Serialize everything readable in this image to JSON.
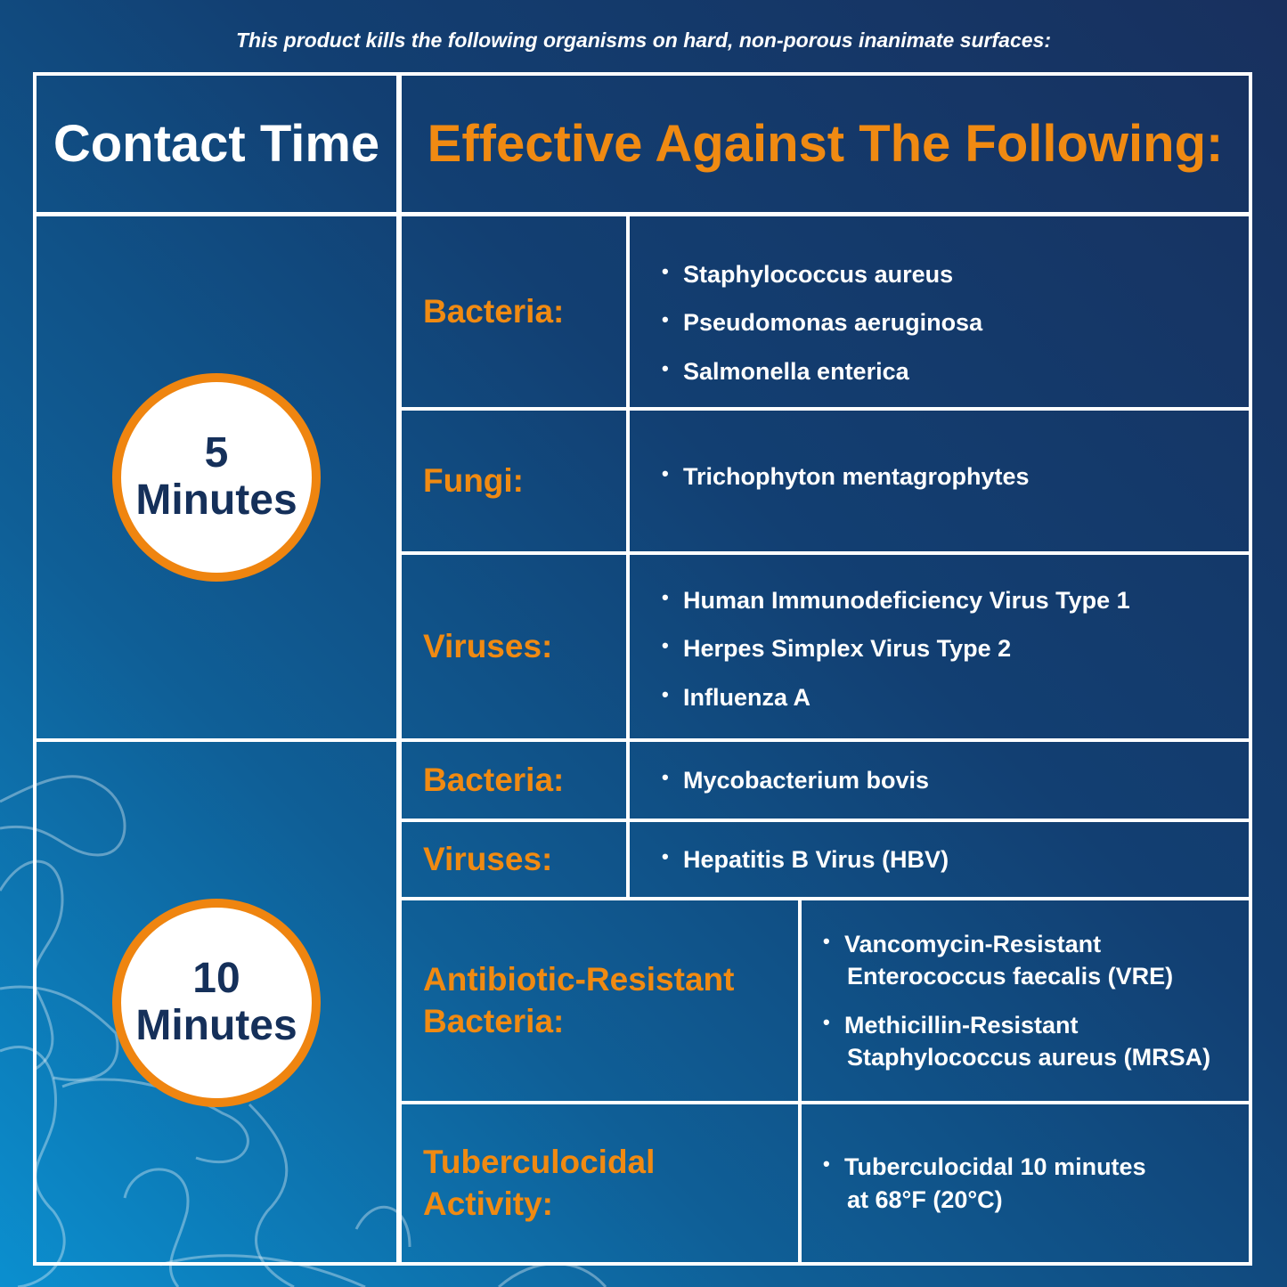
{
  "top_note": "This product kills the following organisms on hard, non-porous inanimate surfaces:",
  "header": {
    "contact_time": "Contact Time",
    "effective_against": "Effective Against The Following:"
  },
  "colors": {
    "accent_orange": "#f08a12",
    "navy": "#15305a",
    "background_dark": "#18305e",
    "background_light": "#0b8fcf"
  },
  "groups": [
    {
      "time_number": "5",
      "time_unit": "Minutes",
      "rows": [
        {
          "category": "Bacteria:",
          "items": [
            "Staphylococcus aureus",
            "Pseudomonas aeruginosa",
            "Salmonella enterica"
          ]
        },
        {
          "category": "Fungi:",
          "items": [
            "Trichophyton mentagrophytes"
          ]
        },
        {
          "category": "Viruses:",
          "items": [
            "Human Immunodeficiency Virus Type 1",
            "Herpes Simplex Virus Type 2",
            "Influenza A"
          ]
        }
      ]
    },
    {
      "time_number": "10",
      "time_unit": "Minutes",
      "rows": [
        {
          "category": "Bacteria:",
          "items": [
            "Mycobacterium bovis"
          ]
        },
        {
          "category": "Viruses:",
          "items": [
            "Hepatitis B Virus (HBV)"
          ]
        },
        {
          "category_line1": "Antibiotic-Resistant",
          "category_line2": "Bacteria:",
          "items": [
            [
              "Vancomycin-Resistant",
              "Enterococcus faecalis (VRE)"
            ],
            [
              "Methicillin-Resistant",
              "Staphylococcus aureus (MRSA)"
            ]
          ]
        },
        {
          "category_line1": "Tuberculocidal",
          "category_line2": "Activity:",
          "items": [
            [
              "Tuberculocidal 10 minutes",
              "at 68°F (20°C)"
            ]
          ]
        }
      ]
    }
  ]
}
